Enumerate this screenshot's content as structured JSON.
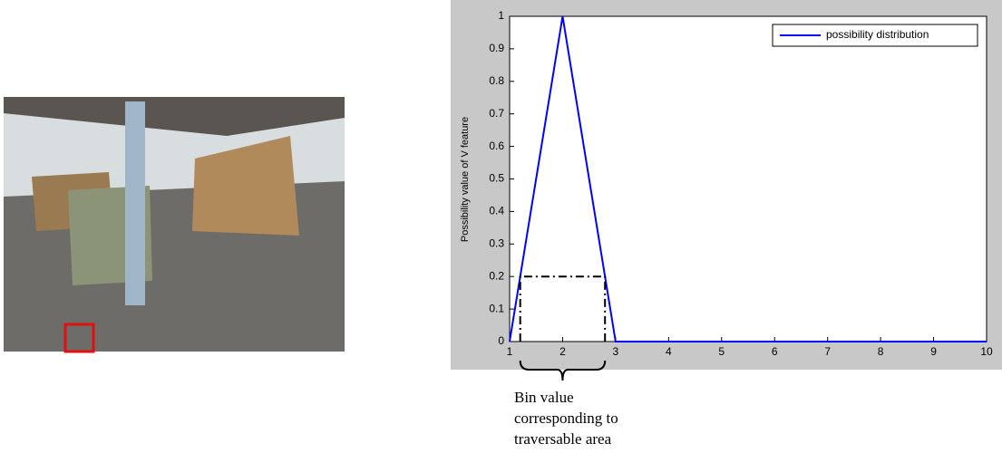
{
  "chart_data": {
    "type": "line",
    "ylabel": "Possibility value of V feature",
    "x": [
      1,
      2,
      3,
      4,
      5,
      6,
      7,
      8,
      9,
      10
    ],
    "series": [
      {
        "name": "possibility distribution",
        "color": "#0000ff",
        "values": [
          0,
          1,
          0,
          0,
          0,
          0,
          0,
          0,
          0,
          0
        ]
      }
    ],
    "xlim": [
      1,
      10
    ],
    "ylim": [
      0,
      1
    ],
    "xticks": [
      1,
      2,
      3,
      4,
      5,
      6,
      7,
      8,
      9,
      10
    ],
    "yticks": [
      0,
      0.1,
      0.2,
      0.3,
      0.4,
      0.5,
      0.6,
      0.7,
      0.8,
      0.9,
      1
    ],
    "grid": false,
    "legend": "upper right",
    "box": {
      "x": [
        1.2,
        2.8
      ],
      "y": [
        0,
        0.2
      ]
    },
    "annotation": [
      "Bin value",
      "corresponding to",
      "traversable area"
    ]
  }
}
